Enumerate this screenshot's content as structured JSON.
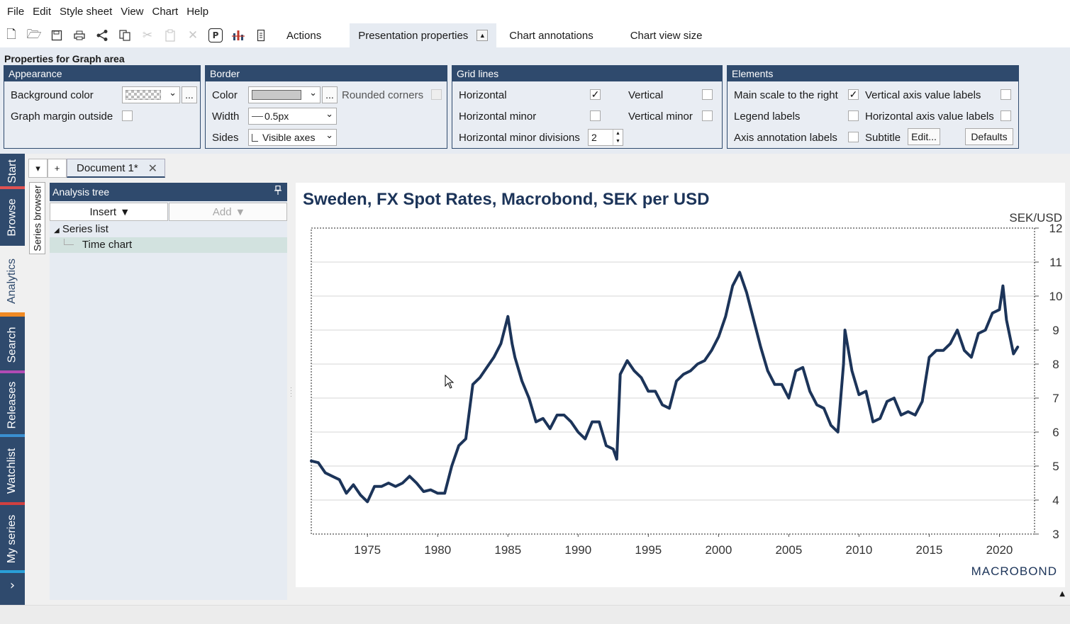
{
  "menu": [
    "File",
    "Edit",
    "Style sheet",
    "View",
    "Chart",
    "Help"
  ],
  "toolbar": {
    "tabs": [
      "Actions",
      "Presentation properties",
      "Chart annotations",
      "Chart view size"
    ],
    "icons": [
      "new-document-icon",
      "open-folder-icon",
      "save-icon",
      "print-icon",
      "share-icon",
      "copy-icon",
      "cut-icon",
      "paste-icon",
      "delete-icon",
      "presentation-mode-icon",
      "chart-icon",
      "report-icon"
    ]
  },
  "props": {
    "title": "Properties for Graph area",
    "appearance": {
      "header": "Appearance",
      "bg_color_label": "Background color",
      "bg_more": "...",
      "margin_label": "Graph margin outside"
    },
    "border": {
      "header": "Border",
      "color_label": "Color",
      "color_more": "...",
      "rounded_label": "Rounded corners",
      "width_label": "Width",
      "width_value": "0.5px",
      "sides_label": "Sides",
      "sides_value": "Visible axes"
    },
    "grid": {
      "header": "Grid lines",
      "horizontal": "Horizontal",
      "vertical": "Vertical",
      "horizontal_minor": "Horizontal minor",
      "vertical_minor": "Vertical minor",
      "minor_div_label": "Horizontal minor divisions",
      "minor_div_value": "2",
      "horizontal_checked": true
    },
    "elements": {
      "header": "Elements",
      "main_scale_right": "Main scale to the right",
      "vertical_axis_labels": "Vertical axis value labels",
      "legend_labels": "Legend labels",
      "horizontal_axis_labels": "Horizontal axis value labels",
      "axis_annotation_labels": "Axis annotation labels",
      "subtitle": "Subtitle",
      "edit_button": "Edit...",
      "defaults_button": "Defaults",
      "main_scale_checked": true
    }
  },
  "side_tabs": [
    {
      "label": "Start",
      "bar": "#e05252"
    },
    {
      "label": "Browse",
      "bar": "#2f4a6d"
    },
    {
      "label": "Analytics",
      "bar": "#f08a24"
    },
    {
      "label": "Search",
      "bar": "#b24bb4"
    },
    {
      "label": "Releases",
      "bar": "#3a8fd1"
    },
    {
      "label": "Watchlist",
      "bar": "#d04040"
    },
    {
      "label": "My series",
      "bar": "#2a9fd8"
    }
  ],
  "document_tab": {
    "label": "Document 1*",
    "close": "✕"
  },
  "series_browser_label": "Series browser",
  "analysis_tree": {
    "header": "Analysis tree",
    "insert_label": "Insert",
    "add_label": "Add",
    "items": [
      "Series list",
      "Time chart"
    ]
  },
  "chart": {
    "title": "Sweden, FX Spot Rates, Macrobond, SEK per USD",
    "unit": "SEK/USD",
    "logo": "MACROBOND"
  },
  "chart_data": {
    "type": "line",
    "title": "Sweden, FX Spot Rates, Macrobond, SEK per USD",
    "ylabel": "SEK/USD",
    "ylim": [
      3,
      12
    ],
    "xlim": [
      1971,
      2022.5
    ],
    "yticks": [
      3,
      4,
      5,
      6,
      7,
      8,
      9,
      10,
      11,
      12
    ],
    "xticks": [
      1975,
      1980,
      1985,
      1990,
      1995,
      2000,
      2005,
      2010,
      2015,
      2020
    ],
    "y_axis_side": "right",
    "grid": "horizontal",
    "color": "#1c3459",
    "series": [
      {
        "x": [
          1971.0,
          1971.5,
          1972.0,
          1972.5,
          1973.0,
          1973.5,
          1974.0,
          1974.5,
          1975.0,
          1975.5,
          1976.0,
          1976.5,
          1977.0,
          1977.5,
          1978.0,
          1978.5,
          1979.0,
          1979.5,
          1980.0,
          1980.5,
          1981.0,
          1981.5,
          1982.0,
          1982.5,
          1983.0,
          1983.5,
          1984.0,
          1984.5,
          1985.0,
          1985.3,
          1985.5,
          1986.0,
          1986.5,
          1987.0,
          1987.5,
          1988.0,
          1988.5,
          1989.0,
          1989.5,
          1990.0,
          1990.5,
          1991.0,
          1991.5,
          1992.0,
          1992.5,
          1992.75,
          1993.0,
          1993.5,
          1994.0,
          1994.5,
          1995.0,
          1995.5,
          1996.0,
          1996.5,
          1997.0,
          1997.5,
          1998.0,
          1998.5,
          1999.0,
          1999.5,
          2000.0,
          2000.5,
          2001.0,
          2001.5,
          2002.0,
          2002.5,
          2003.0,
          2003.5,
          2004.0,
          2004.5,
          2005.0,
          2005.5,
          2006.0,
          2006.5,
          2007.0,
          2007.5,
          2008.0,
          2008.5,
          2008.9,
          2009.0,
          2009.5,
          2010.0,
          2010.5,
          2011.0,
          2011.5,
          2012.0,
          2012.5,
          2013.0,
          2013.5,
          2014.0,
          2014.5,
          2015.0,
          2015.5,
          2016.0,
          2016.5,
          2017.0,
          2017.5,
          2018.0,
          2018.5,
          2019.0,
          2019.5,
          2020.0,
          2020.25,
          2020.5,
          2021.0,
          2021.3
        ],
        "y": [
          5.15,
          5.1,
          4.8,
          4.7,
          4.6,
          4.2,
          4.45,
          4.15,
          3.95,
          4.4,
          4.4,
          4.5,
          4.4,
          4.5,
          4.7,
          4.5,
          4.25,
          4.3,
          4.2,
          4.2,
          5.0,
          5.6,
          5.8,
          7.4,
          7.6,
          7.9,
          8.2,
          8.6,
          9.4,
          8.6,
          8.2,
          7.5,
          7.0,
          6.3,
          6.4,
          6.1,
          6.5,
          6.5,
          6.3,
          6.0,
          5.8,
          6.3,
          6.3,
          5.6,
          5.5,
          5.2,
          7.7,
          8.1,
          7.8,
          7.6,
          7.2,
          7.2,
          6.8,
          6.7,
          7.5,
          7.7,
          7.8,
          8.0,
          8.1,
          8.4,
          8.8,
          9.4,
          10.3,
          10.7,
          10.1,
          9.3,
          8.5,
          7.8,
          7.4,
          7.4,
          7.0,
          7.8,
          7.9,
          7.2,
          6.8,
          6.7,
          6.2,
          6.0,
          8.0,
          9.0,
          7.8,
          7.1,
          7.2,
          6.3,
          6.4,
          6.9,
          7.0,
          6.5,
          6.6,
          6.5,
          6.9,
          8.2,
          8.4,
          8.4,
          8.6,
          9.0,
          8.4,
          8.2,
          8.9,
          9.0,
          9.5,
          9.6,
          10.3,
          9.3,
          8.3,
          8.5
        ]
      }
    ]
  }
}
